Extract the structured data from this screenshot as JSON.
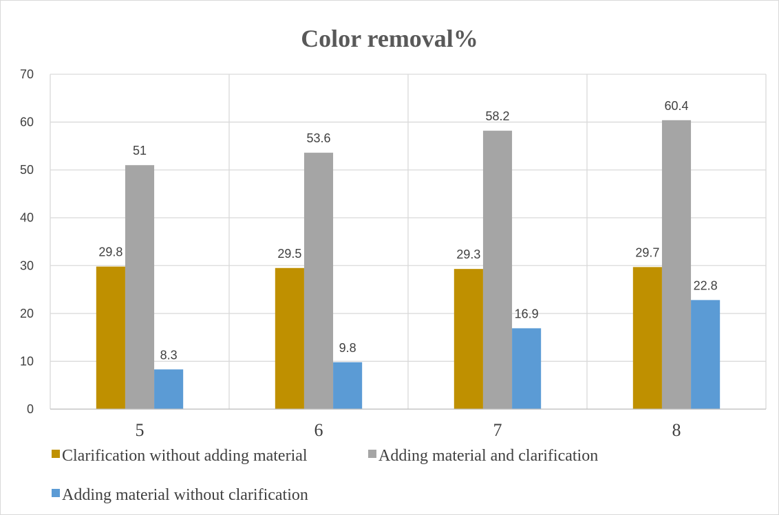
{
  "chart_data": {
    "type": "bar",
    "title": "Color removal%",
    "xlabel": "",
    "ylabel": "",
    "categories": [
      "5",
      "6",
      "7",
      "8"
    ],
    "ylim": [
      0,
      70
    ],
    "yticks": [
      0,
      10,
      20,
      30,
      40,
      50,
      60,
      70
    ],
    "grid": true,
    "legend_position": "bottom",
    "series": [
      {
        "name": "Clarification without adding material",
        "color": "#bf9000",
        "values": [
          29.8,
          29.5,
          29.3,
          29.7
        ],
        "labels": [
          "29.8",
          "29.5",
          "29.3",
          "29.7"
        ]
      },
      {
        "name": "Adding material and clarification",
        "color": "#a5a5a5",
        "values": [
          51,
          53.6,
          58.2,
          60.4
        ],
        "labels": [
          "51",
          "53.6",
          "58.2",
          "60.4"
        ]
      },
      {
        "name": "Adding material without clarification",
        "color": "#5b9bd5",
        "values": [
          8.3,
          9.8,
          16.9,
          22.8
        ],
        "labels": [
          "8.3",
          "9.8",
          "16.9",
          "22.8"
        ]
      }
    ]
  }
}
